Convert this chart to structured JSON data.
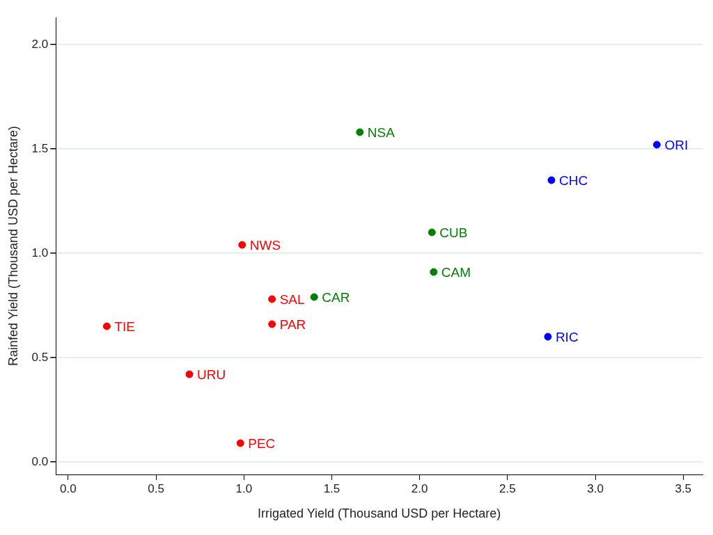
{
  "chart_data": {
    "type": "scatter",
    "xlabel": "Irrigated Yield (Thousand USD per Hectare)",
    "ylabel": "Rainfed Yield (Thousand USD per Hectare)",
    "series": [
      {
        "color": "#ff0000",
        "x": [
          0.99,
          1.16,
          1.16,
          0.22,
          0.69,
          0.98
        ],
        "values": [
          1.04,
          0.78,
          0.66,
          0.65,
          0.42,
          0.09
        ]
      },
      {
        "color": "#008000",
        "x": [
          1.66,
          2.07,
          2.08,
          1.4
        ],
        "values": [
          1.58,
          1.1,
          0.91,
          0.79
        ]
      },
      {
        "color": "#0000ff",
        "x": [
          3.35,
          2.75,
          2.73
        ],
        "values": [
          1.52,
          1.35,
          0.6
        ]
      }
    ],
    "annotations": [
      {
        "text": "NWS",
        "x": 0.99,
        "y": 1.04
      },
      {
        "text": "SAL",
        "x": 1.16,
        "y": 0.78
      },
      {
        "text": "PAR",
        "x": 1.16,
        "y": 0.66
      },
      {
        "text": "TIE",
        "x": 0.22,
        "y": 0.65
      },
      {
        "text": "URU",
        "x": 0.69,
        "y": 0.42
      },
      {
        "text": "PEC",
        "x": 0.98,
        "y": 0.09
      },
      {
        "text": "NSA",
        "x": 1.66,
        "y": 1.58
      },
      {
        "text": "CUB",
        "x": 2.07,
        "y": 1.1
      },
      {
        "text": "CAM",
        "x": 2.08,
        "y": 0.91
      },
      {
        "text": "CAR",
        "x": 1.4,
        "y": 0.79
      },
      {
        "text": "ORI",
        "x": 3.35,
        "y": 1.52
      },
      {
        "text": "CHC",
        "x": 2.75,
        "y": 1.35
      },
      {
        "text": "RIC",
        "x": 2.73,
        "y": 0.6
      }
    ],
    "xlim": [
      -0.07,
      3.61
    ],
    "ylim": [
      -0.06,
      2.13
    ],
    "xticks": [
      {
        "value": 0,
        "label": "0.0"
      },
      {
        "value": 0.5,
        "label": "0.5"
      },
      {
        "value": 1,
        "label": "1.0"
      },
      {
        "value": 1.5,
        "label": "1.5"
      },
      {
        "value": 2,
        "label": "2.0"
      },
      {
        "value": 2.5,
        "label": "2.5"
      },
      {
        "value": 3,
        "label": "3.0"
      },
      {
        "value": 3.5,
        "label": "3.5"
      }
    ],
    "yticks": [
      {
        "value": 0,
        "label": "0.0"
      },
      {
        "value": 0.5,
        "label": "0.5"
      },
      {
        "value": 1,
        "label": "1.0"
      },
      {
        "value": 1.5,
        "label": "1.5"
      },
      {
        "value": 2,
        "label": "2.0"
      }
    ],
    "grid": "y",
    "legend": false,
    "marker": "circle"
  }
}
